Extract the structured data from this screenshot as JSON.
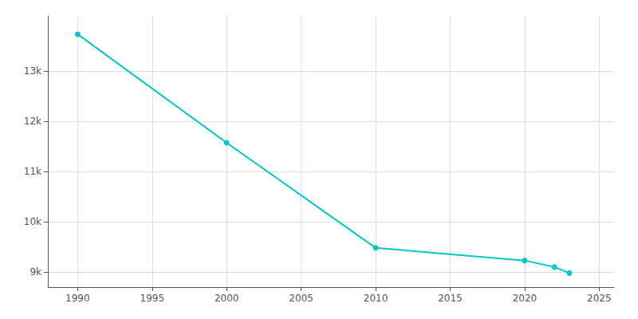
{
  "chart_data": {
    "type": "line",
    "x": [
      1990,
      2000,
      2010,
      2020,
      2022,
      2023
    ],
    "values": [
      13736,
      11575,
      9481,
      9230,
      9099,
      8980
    ],
    "color": "#00c8c8",
    "marker": "circle",
    "xlim": [
      1988,
      2026
    ],
    "ylim": [
      8700,
      14100
    ],
    "xticks": [
      1990,
      1995,
      2000,
      2005,
      2010,
      2015,
      2020,
      2025
    ],
    "yticks": [
      {
        "value": 9000,
        "label": "9k"
      },
      {
        "value": 10000,
        "label": "10k"
      },
      {
        "value": 11000,
        "label": "11k"
      },
      {
        "value": 12000,
        "label": "12k"
      },
      {
        "value": 13000,
        "label": "13k"
      }
    ],
    "grid": true
  }
}
